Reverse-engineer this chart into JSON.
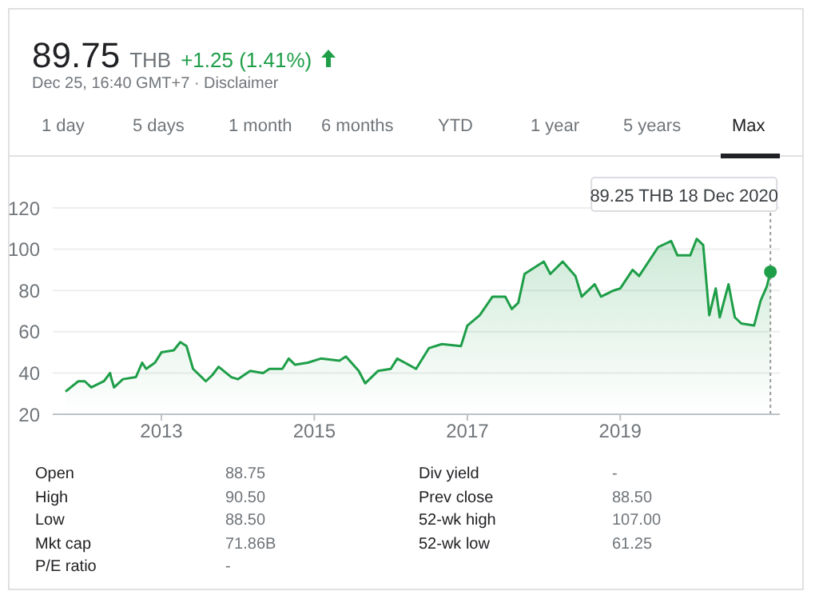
{
  "chart_data": {
    "type": "area",
    "color": "#1e9e48",
    "x": [
      "2011-10",
      "2011-12",
      "2012-01",
      "2012-02",
      "2012-04",
      "2012-05",
      "2012-05-05",
      "2012-05-20",
      "2012-07",
      "2012-09",
      "2012-10",
      "2012-10-20",
      "2012-12",
      "2013-01",
      "2013-03",
      "2013-04",
      "2013-05",
      "2013-06",
      "2013-08",
      "2013-09",
      "2013-10",
      "2013-12",
      "2014-01",
      "2014-03",
      "2014-05",
      "2014-06",
      "2014-08",
      "2014-09",
      "2014-10",
      "2014-12",
      "2015-02",
      "2015-05",
      "2015-06",
      "2015-08",
      "2015-09",
      "2015-11",
      "2016-01",
      "2016-02",
      "2016-05",
      "2016-07",
      "2016-09",
      "2016-12",
      "2017-01",
      "2017-03",
      "2017-05",
      "2017-07",
      "2017-08",
      "2017-09",
      "2017-10",
      "2018-01",
      "2018-02",
      "2018-04",
      "2018-06",
      "2018-07",
      "2018-09",
      "2018-10",
      "2018-12",
      "2019-01",
      "2019-03",
      "2019-04",
      "2019-07",
      "2019-09",
      "2019-10",
      "2019-12",
      "2020-01",
      "2020-02",
      "2020-03",
      "2020-04",
      "2020-04-20",
      "2020-06",
      "2020-07",
      "2020-08",
      "2020-10",
      "2020-11",
      "2020-12-01",
      "2020-12-18"
    ],
    "values": [
      31,
      36,
      36,
      33,
      36,
      40,
      38,
      33,
      37,
      38,
      45,
      42,
      45,
      50,
      51,
      55,
      53,
      42,
      36,
      39,
      43,
      38,
      37,
      41,
      40,
      42,
      42,
      47,
      44,
      45,
      47,
      46,
      48,
      41,
      35,
      41,
      42,
      47,
      42,
      52,
      54,
      53,
      63,
      68,
      77,
      77,
      71,
      74,
      88,
      94,
      88,
      94,
      87,
      77,
      83,
      77,
      80,
      81,
      90,
      87,
      101,
      104,
      97,
      97,
      105,
      102,
      68,
      81,
      67,
      83,
      67,
      64,
      63,
      75,
      82,
      89
    ],
    "ylim": [
      20,
      120
    ],
    "yticks": [
      20,
      40,
      60,
      80,
      100,
      120
    ],
    "xlim": [
      "2011-08",
      "2021-02"
    ],
    "xticks": [
      "2013",
      "2015",
      "2017",
      "2019"
    ],
    "grid": "y",
    "ref_lines": [
      {
        "axis": "x",
        "value": "2020-12-18",
        "line_style": "dotted",
        "color": "#999999",
        "label": "89.25 THB  18 Dec 2020"
      }
    ],
    "annotations": [
      "89.75",
      "THB",
      "+1.25 (1.41%)",
      "Dec 25, 16:40 GMT+7 · Disclaimer",
      "1 day",
      "5 days",
      "1 month",
      "6 months",
      "YTD",
      "1 year",
      "5 years",
      "Max",
      "Open",
      "88.75",
      "High",
      "90.50",
      "Low",
      "88.50",
      "Mkt cap",
      "71.86B",
      "P/E ratio",
      "-",
      "Div yield",
      "-",
      "Prev close",
      "88.50",
      "52-wk high",
      "107.00",
      "52-wk low",
      "61.25"
    ]
  }
}
